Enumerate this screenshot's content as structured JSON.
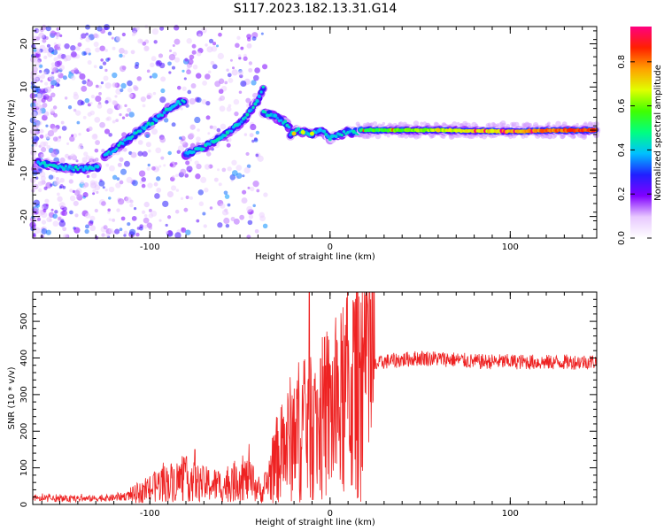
{
  "title": "S117.2023.182.13.31.G14",
  "chart_data": [
    {
      "type": "heatmap",
      "xlabel": "Height of straight line (km)",
      "ylabel": "Frequency (Hz)",
      "xlim": [
        -165,
        148
      ],
      "ylim": [
        -25,
        24
      ],
      "xticks": [
        -100,
        0,
        100
      ],
      "yticks": [
        -20,
        -10,
        0,
        10,
        20
      ],
      "colorbar": {
        "label": "Normalized spectral amplitude",
        "range": [
          0.0,
          0.96
        ],
        "ticks": [
          "0.0",
          "0.2",
          "0.4",
          "0.6",
          "0.8"
        ],
        "tick_values": [
          0.0,
          0.2,
          0.4,
          0.6,
          0.8
        ],
        "colormap": [
          "#ffffff",
          "#e8c8ff",
          "#8000ff",
          "#2020ff",
          "#00c0ff",
          "#00ff80",
          "#40ff00",
          "#e0ff00",
          "#ffa000",
          "#ff2000",
          "#ff0080"
        ]
      },
      "ridge_segments": [
        {
          "x": [
            -162,
            -150,
            -140,
            -130,
            -128
          ],
          "y": [
            -7.5,
            -8.5,
            -9,
            -8.5,
            -9
          ]
        },
        {
          "x": [
            -125,
            -115,
            -105,
            -95,
            -90,
            -85,
            -80
          ],
          "y": [
            -6,
            -3,
            0,
            3,
            5,
            6,
            7
          ]
        },
        {
          "x": [
            -80,
            -70,
            -60,
            -50,
            -45,
            -40,
            -37
          ],
          "y": [
            -5.5,
            -4,
            -1.5,
            1.5,
            4,
            7,
            10
          ]
        },
        {
          "x": [
            -37,
            -32,
            -28,
            -24,
            -22
          ],
          "y": [
            4,
            3.5,
            2.5,
            1.5,
            0.5
          ]
        },
        {
          "x": [
            -22,
            -18,
            -14,
            -10,
            -6,
            -3,
            0,
            5,
            10,
            17
          ],
          "y": [
            -1,
            0,
            -0.5,
            -1,
            0,
            -0.5,
            -2,
            -1,
            -0.5,
            -0.5
          ]
        },
        {
          "x": [
            17,
            40,
            60,
            80,
            100,
            120,
            148
          ],
          "y": [
            0,
            0,
            0,
            -0.2,
            -0.3,
            -0.1,
            0
          ]
        }
      ]
    },
    {
      "type": "line",
      "xlabel": "Height of straight line (km)",
      "ylabel": "SNR (10 * v/v)",
      "xlim": [
        -165,
        148
      ],
      "ylim": [
        0,
        580
      ],
      "xticks": [
        -100,
        0,
        100
      ],
      "yticks": [
        0,
        100,
        200,
        300,
        400,
        500
      ],
      "color": "#ee2222",
      "envelope": {
        "x": [
          -165,
          -140,
          -120,
          -110,
          -100,
          -95,
          -90,
          -85,
          -80,
          -75,
          -70,
          -65,
          -60,
          -55,
          -50,
          -45,
          -40,
          -38,
          -35,
          -30,
          -25,
          -22,
          -18,
          -15,
          -12,
          -11,
          -9,
          -5,
          0,
          5,
          10,
          15,
          20,
          25,
          30,
          40,
          50,
          60,
          70,
          80,
          100,
          120,
          148
        ],
        "y": [
          15,
          15,
          18,
          25,
          40,
          55,
          60,
          65,
          70,
          60,
          55,
          55,
          50,
          55,
          75,
          65,
          45,
          30,
          60,
          120,
          150,
          180,
          200,
          210,
          230,
          250,
          200,
          230,
          250,
          260,
          300,
          330,
          360,
          380,
          390,
          395,
          400,
          398,
          395,
          390,
          390,
          388,
          390
        ]
      },
      "peaks": [
        {
          "x": -11.5,
          "y": 580
        },
        {
          "x": -45,
          "y": 165
        },
        {
          "x": -75,
          "y": 150
        },
        {
          "x": 10,
          "y": 425
        }
      ]
    }
  ]
}
